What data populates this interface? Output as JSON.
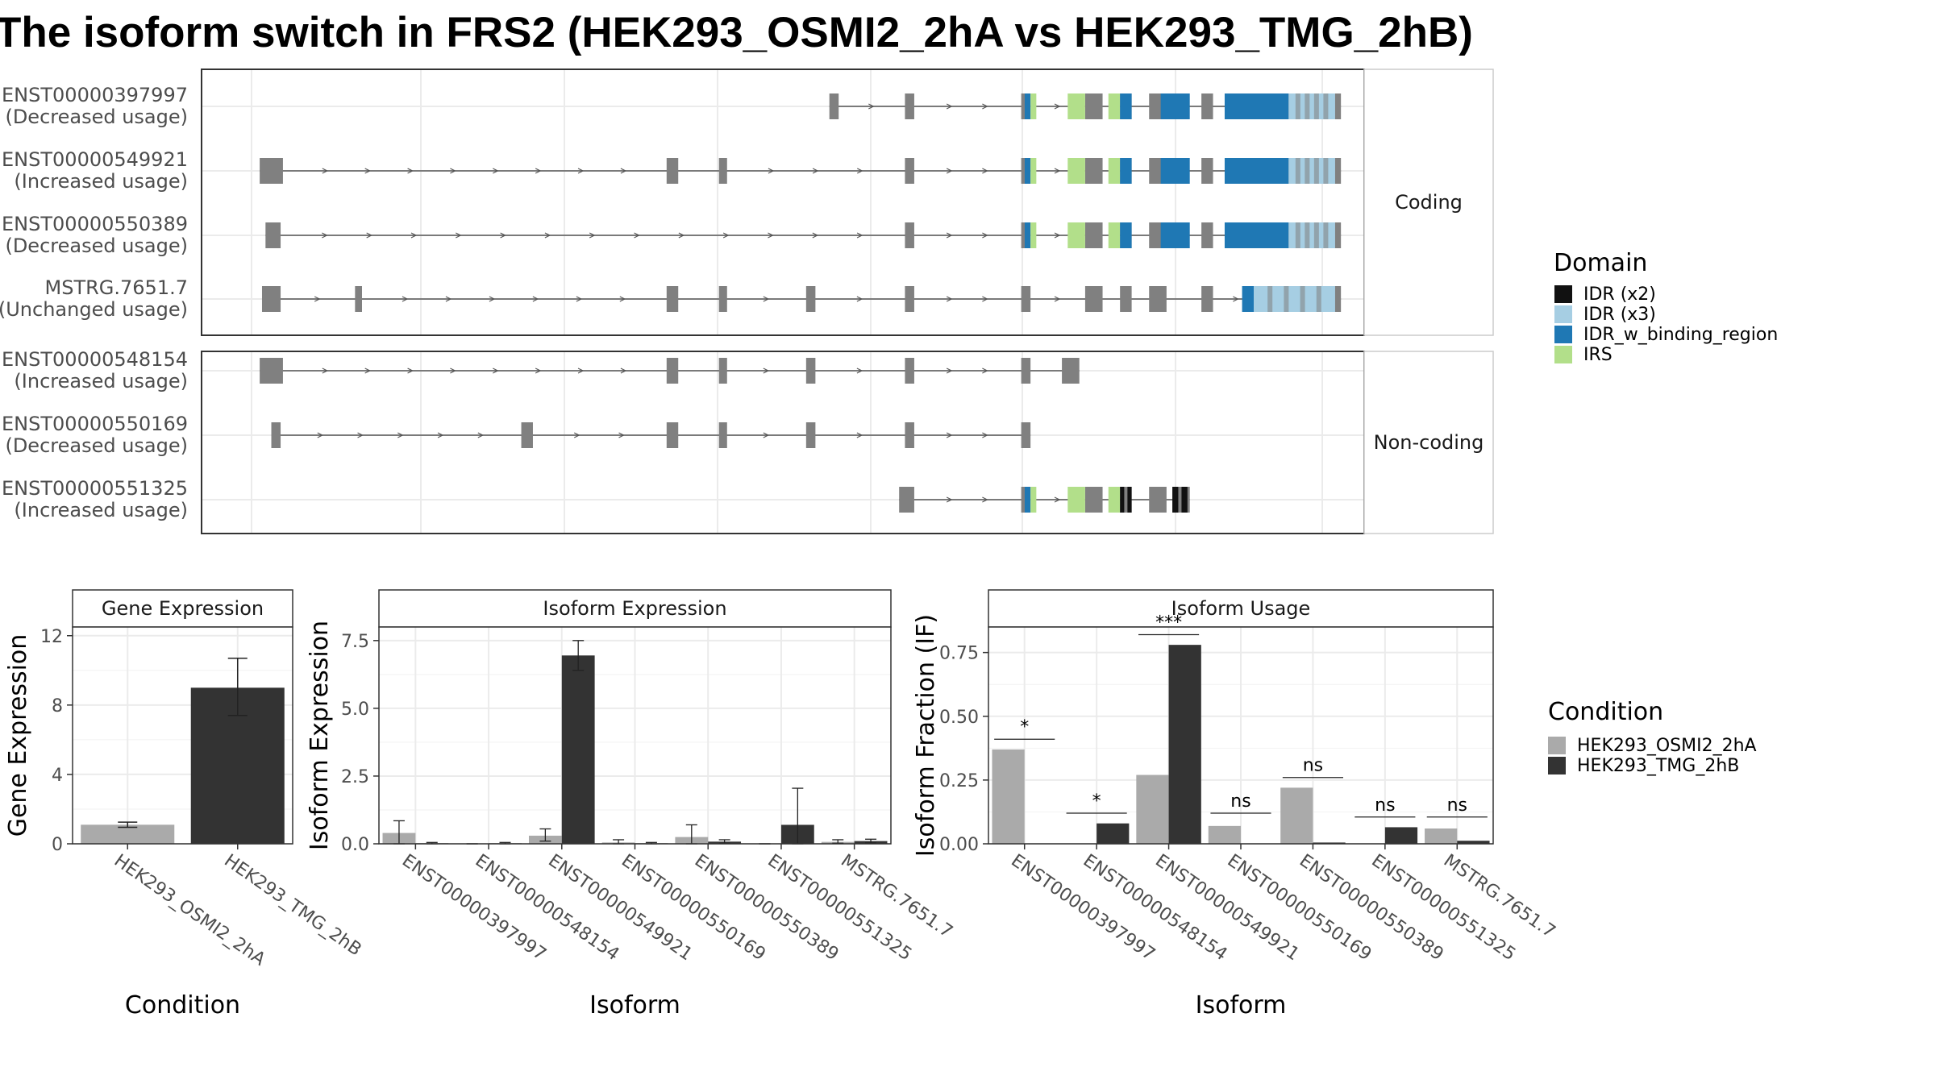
{
  "title": "The isoform switch in FRS2 (HEK293_OSMI2_2hA vs HEK293_TMG_2hB)",
  "colors": {
    "exon": "#808080",
    "intron": "#555555",
    "cond_a": "#aaaaaa",
    "cond_b": "#333333",
    "grid": "#ebebeb",
    "panel_border": "#333333",
    "strip_bg": "#ffffff",
    "domains": {
      "IDR (x2)": "#111111",
      "IDR (x3)": "#a6cee3",
      "IDR_w_binding_region": "#1f78b4",
      "IRS": "#b2df8a"
    }
  },
  "structure": {
    "genomic_range": [
      0,
      1000
    ],
    "groups": [
      {
        "label": "Coding",
        "transcripts": [
          {
            "id": "ENST00000397997",
            "usage": "(Decreased usage)",
            "exons": [
              [
                540,
                548
              ],
              [
                605,
                613
              ],
              [
                705,
                713
              ],
              [
                760,
                775
              ],
              [
                790,
                800
              ],
              [
                815,
                830
              ],
              [
                860,
                870
              ],
              [
                910,
                980
              ]
            ],
            "domains": [
              [
                708,
                713,
                "IDR_w_binding_region"
              ],
              [
                713,
                718,
                "IRS"
              ],
              [
                745,
                760,
                "IRS"
              ],
              [
                780,
                790,
                "IRS"
              ],
              [
                790,
                800,
                "IDR_w_binding_region"
              ],
              [
                825,
                850,
                "IDR_w_binding_region"
              ],
              [
                880,
                935,
                "IDR_w_binding_region"
              ],
              [
                935,
                975,
                "IDR (x3)"
              ]
            ]
          },
          {
            "id": "ENST00000549921",
            "usage": "(Increased usage)",
            "exons": [
              [
                50,
                70
              ],
              [
                400,
                410
              ],
              [
                445,
                452
              ],
              [
                605,
                613
              ],
              [
                705,
                713
              ],
              [
                760,
                775
              ],
              [
                790,
                800
              ],
              [
                815,
                830
              ],
              [
                860,
                870
              ],
              [
                910,
                980
              ]
            ],
            "domains": [
              [
                708,
                713,
                "IDR_w_binding_region"
              ],
              [
                713,
                718,
                "IRS"
              ],
              [
                745,
                760,
                "IRS"
              ],
              [
                780,
                790,
                "IRS"
              ],
              [
                790,
                800,
                "IDR_w_binding_region"
              ],
              [
                825,
                850,
                "IDR_w_binding_region"
              ],
              [
                880,
                935,
                "IDR_w_binding_region"
              ],
              [
                935,
                975,
                "IDR (x3)"
              ]
            ]
          },
          {
            "id": "ENST00000550389",
            "usage": "(Decreased usage)",
            "exons": [
              [
                55,
                68
              ],
              [
                605,
                613
              ],
              [
                705,
                713
              ],
              [
                760,
                775
              ],
              [
                790,
                800
              ],
              [
                815,
                830
              ],
              [
                860,
                870
              ],
              [
                910,
                980
              ]
            ],
            "domains": [
              [
                708,
                713,
                "IDR_w_binding_region"
              ],
              [
                713,
                718,
                "IRS"
              ],
              [
                745,
                760,
                "IRS"
              ],
              [
                780,
                790,
                "IRS"
              ],
              [
                790,
                800,
                "IDR_w_binding_region"
              ],
              [
                825,
                850,
                "IDR_w_binding_region"
              ],
              [
                880,
                935,
                "IDR_w_binding_region"
              ],
              [
                935,
                975,
                "IDR (x3)"
              ]
            ]
          },
          {
            "id": "MSTRG.7651.7",
            "usage": "(Unchanged usage)",
            "exons": [
              [
                52,
                68
              ],
              [
                132,
                138
              ],
              [
                400,
                410
              ],
              [
                445,
                452
              ],
              [
                520,
                528
              ],
              [
                605,
                613
              ],
              [
                705,
                713
              ],
              [
                760,
                775
              ],
              [
                790,
                800
              ],
              [
                815,
                830
              ],
              [
                860,
                870
              ],
              [
                910,
                980
              ]
            ],
            "domains": [
              [
                895,
                905,
                "IDR_w_binding_region"
              ],
              [
                905,
                975,
                "IDR (x3)"
              ]
            ]
          }
        ]
      },
      {
        "label": "Non-coding",
        "transcripts": [
          {
            "id": "ENST00000548154",
            "usage": "(Increased usage)",
            "exons": [
              [
                50,
                70
              ],
              [
                400,
                410
              ],
              [
                445,
                452
              ],
              [
                520,
                528
              ],
              [
                605,
                613
              ],
              [
                705,
                713
              ],
              [
                740,
                755
              ]
            ],
            "domains": []
          },
          {
            "id": "ENST00000550169",
            "usage": "(Decreased usage)",
            "exons": [
              [
                60,
                68
              ],
              [
                275,
                285
              ],
              [
                400,
                410
              ],
              [
                445,
                452
              ],
              [
                520,
                528
              ],
              [
                605,
                613
              ],
              [
                705,
                713
              ]
            ],
            "domains": []
          },
          {
            "id": "ENST00000551325",
            "usage": "(Increased usage)",
            "exons": [
              [
                600,
                613
              ],
              [
                705,
                713
              ],
              [
                760,
                775
              ],
              [
                790,
                800
              ],
              [
                815,
                830
              ],
              [
                840,
                850
              ]
            ],
            "domains": [
              [
                708,
                713,
                "IDR_w_binding_region"
              ],
              [
                713,
                718,
                "IRS"
              ],
              [
                745,
                760,
                "IRS"
              ],
              [
                780,
                790,
                "IRS"
              ],
              [
                790,
                800,
                "IDR (x2)"
              ],
              [
                835,
                848,
                "IDR (x2)"
              ]
            ]
          }
        ]
      }
    ]
  },
  "legend_domain": {
    "title": "Domain",
    "items": [
      "IDR (x2)",
      "IDR (x3)",
      "IDR_w_binding_region",
      "IRS"
    ]
  },
  "legend_condition": {
    "title": "Condition",
    "items": [
      "HEK293_OSMI2_2hA",
      "HEK293_TMG_2hB"
    ]
  },
  "chart_data": [
    {
      "type": "bar",
      "title": "Gene Expression",
      "xlabel": "Condition",
      "ylabel": "Gene Expression",
      "ylim": [
        0,
        12.5
      ],
      "yticks": [
        0,
        4,
        8,
        12
      ],
      "categories": [
        "HEK293_OSMI2_2hA",
        "HEK293_TMG_2hB"
      ],
      "values": [
        1.1,
        9.0
      ],
      "err_low": [
        0.95,
        7.4
      ],
      "err_high": [
        1.25,
        10.7
      ]
    },
    {
      "type": "bar",
      "title": "Isoform Expression",
      "xlabel": "Isoform",
      "ylabel": "Isoform Expression",
      "ylim": [
        0,
        8.0
      ],
      "yticks": [
        0,
        2.5,
        5.0,
        7.5
      ],
      "ytick_labels": [
        "0.0",
        "2.5",
        "5.0",
        "7.5"
      ],
      "categories": [
        "ENST00000397997",
        "ENST00000548154",
        "ENST00000549921",
        "ENST00000550169",
        "ENST00000550389",
        "ENST00000551325",
        "MSTRG.7651.7"
      ],
      "series": [
        {
          "name": "HEK293_OSMI2_2hA",
          "values": [
            0.4,
            0.0,
            0.3,
            0.05,
            0.25,
            0.0,
            0.07
          ],
          "err_low": [
            0.0,
            0.0,
            0.1,
            0.0,
            0.0,
            0.0,
            0.02
          ],
          "err_high": [
            0.85,
            0.0,
            0.55,
            0.15,
            0.7,
            0.0,
            0.15
          ]
        },
        {
          "name": "HEK293_TMG_2hB",
          "values": [
            0.02,
            0.02,
            6.95,
            0.02,
            0.08,
            0.7,
            0.1
          ],
          "err_low": [
            0.0,
            0.0,
            6.4,
            0.0,
            0.02,
            0.0,
            0.03
          ],
          "err_high": [
            0.05,
            0.05,
            7.5,
            0.05,
            0.15,
            2.05,
            0.17
          ]
        }
      ]
    },
    {
      "type": "bar",
      "title": "Isoform Usage",
      "xlabel": "Isoform",
      "ylabel": "Isoform Fraction (IF)",
      "ylim": [
        0,
        0.85
      ],
      "yticks": [
        0,
        0.25,
        0.5,
        0.75
      ],
      "ytick_labels": [
        "0.00",
        "0.25",
        "0.50",
        "0.75"
      ],
      "categories": [
        "ENST00000397997",
        "ENST00000548154",
        "ENST00000549921",
        "ENST00000550169",
        "ENST00000550389",
        "ENST00000551325",
        "MSTRG.7651.7"
      ],
      "series": [
        {
          "name": "HEK293_OSMI2_2hA",
          "values": [
            0.37,
            0.0,
            0.27,
            0.07,
            0.22,
            0.0,
            0.06
          ]
        },
        {
          "name": "HEK293_TMG_2hB",
          "values": [
            0.0,
            0.08,
            0.78,
            0.0,
            0.005,
            0.065,
            0.012
          ]
        }
      ],
      "significance": [
        "*",
        "*",
        "***",
        "ns",
        "ns",
        "ns",
        "ns"
      ],
      "sig_y": [
        0.41,
        0.12,
        0.82,
        0.12,
        0.26,
        0.105,
        0.105
      ]
    }
  ]
}
